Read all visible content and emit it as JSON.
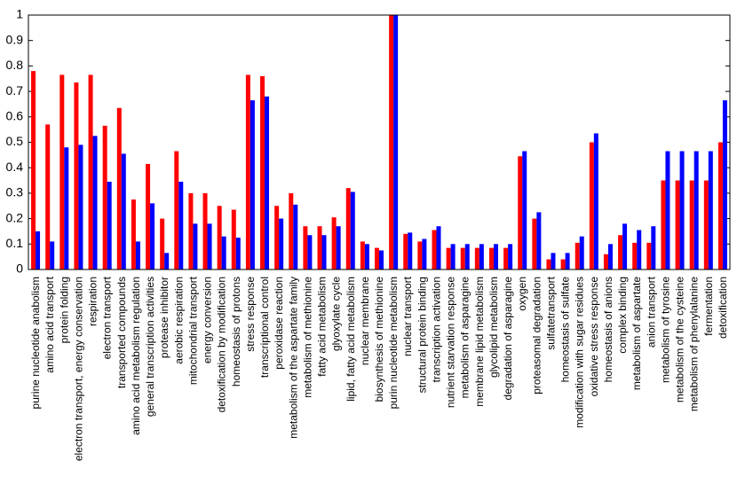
{
  "chart_data": {
    "type": "bar",
    "categories": [
      "purine nucleotide anabolism",
      "amino acid transport",
      "protein folding",
      "electron transport, energy conservation",
      "respiration",
      "electron transport",
      "transported compounds",
      "amino acid metabolism regulation",
      "general transcription activities",
      "protease inhibitor",
      "aerobic respiration",
      "mitochondrial transport",
      "energy conversion",
      "detoxification by modification",
      "homeostasis of protons",
      "stress response",
      "transcriptional control",
      "peroxidase reaction",
      "metabolism of the aspartate family",
      "metabolism of methionine",
      "fatty acid metabolism",
      "glyoxylate cycle",
      "lipid, fatty acid metabolism",
      "nuclear membrane",
      "biosynthesis of methionine",
      "purin nucleotide metabolism",
      "nuclear transport",
      "structural protein binding",
      "transcription activation",
      "nutrient starvation response",
      "metabolism of asparagine",
      "membrane lipid metabolism",
      "glycolipid metabolism",
      "degradation of asparagine",
      "oxygen",
      "proteasomal degradation",
      "sulfatetransport",
      "homeostasis of sulfate",
      "modification with sugar residues",
      "oxidative stress response",
      "homeostasis of anions",
      "complex binding",
      "metabolism of aspartate",
      "anion transport",
      "metabolism of tyrosine",
      "metabolism of the cysteine",
      "metabolism of phenylalanine",
      "fermentation",
      "detoxification"
    ],
    "series": [
      {
        "color": "#ff0000",
        "values": [
          0.78,
          0.57,
          0.765,
          0.735,
          0.765,
          0.565,
          0.635,
          0.275,
          0.415,
          0.2,
          0.465,
          0.3,
          0.3,
          0.25,
          0.235,
          0.765,
          0.76,
          0.25,
          0.3,
          0.17,
          0.17,
          0.205,
          0.32,
          0.11,
          0.085,
          1.0,
          0.14,
          0.11,
          0.155,
          0.085,
          0.085,
          0.085,
          0.085,
          0.085,
          0.445,
          0.2,
          0.04,
          0.04,
          0.105,
          0.5,
          0.06,
          0.135,
          0.105,
          0.105,
          0.35,
          0.35,
          0.35,
          0.35,
          0.5
        ]
      },
      {
        "color": "#0000ff",
        "values": [
          0.15,
          0.11,
          0.48,
          0.49,
          0.525,
          0.345,
          0.455,
          0.11,
          0.26,
          0.065,
          0.345,
          0.18,
          0.18,
          0.13,
          0.125,
          0.665,
          0.68,
          0.2,
          0.255,
          0.135,
          0.135,
          0.17,
          0.305,
          0.1,
          0.075,
          1.0,
          0.145,
          0.12,
          0.17,
          0.1,
          0.1,
          0.1,
          0.1,
          0.1,
          0.465,
          0.225,
          0.065,
          0.065,
          0.13,
          0.535,
          0.1,
          0.18,
          0.155,
          0.17,
          0.465,
          0.465,
          0.465,
          0.465,
          0.665
        ]
      }
    ],
    "ylim": [
      0,
      1
    ],
    "yticks": [
      0,
      0.1,
      0.2,
      0.3,
      0.4,
      0.5,
      0.6,
      0.7,
      0.8,
      0.9,
      1
    ]
  }
}
